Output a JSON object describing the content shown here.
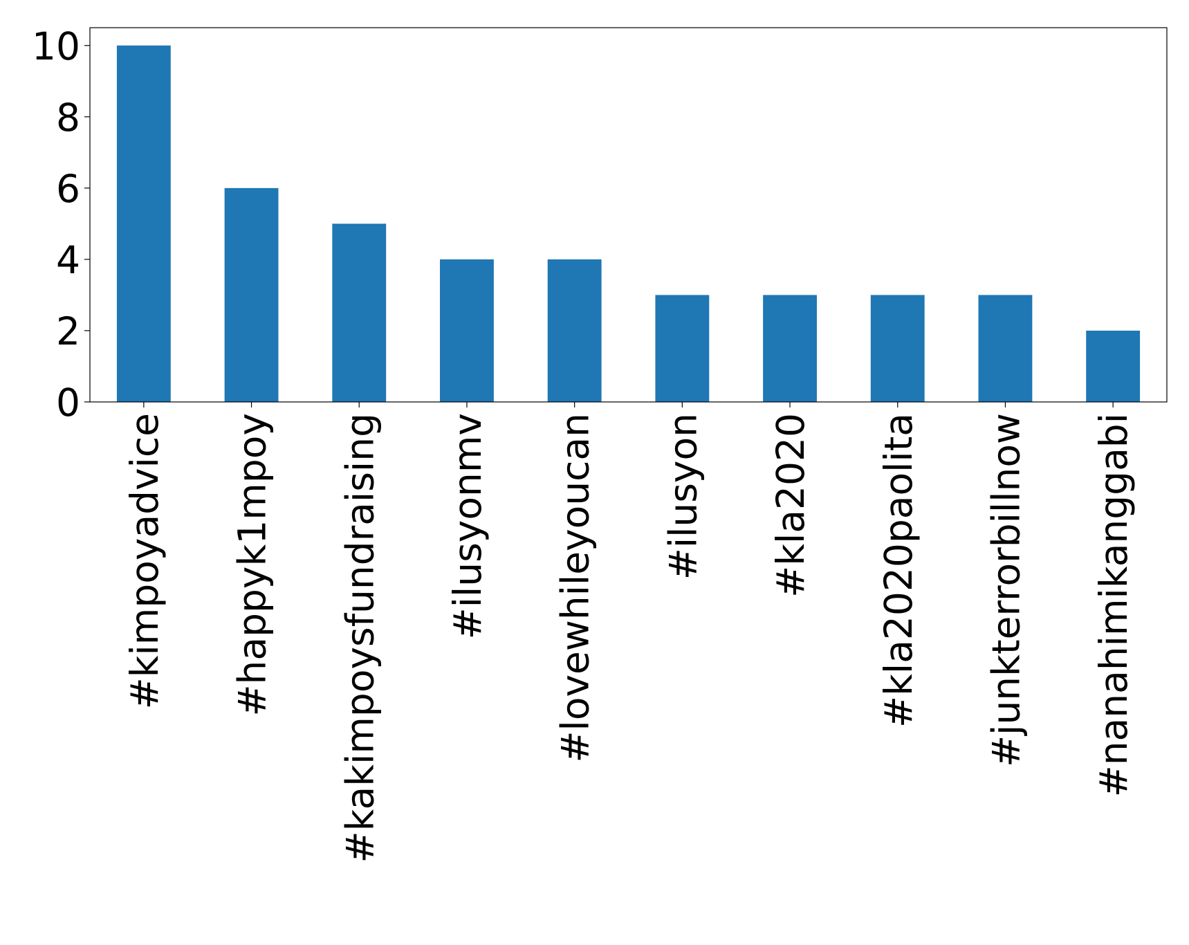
{
  "chart_data": {
    "type": "bar",
    "categories": [
      "#kimpoyadvice",
      "#happyk1mpoy",
      "#kakimpoysfundraising",
      "#ilusyonmv",
      "#lovewhileyoucan",
      "#ilusyon",
      "#kla2020",
      "#kla2020paolita",
      "#junkterrorbillnow",
      "#nanahimikanggabi"
    ],
    "values": [
      10,
      6,
      5,
      4,
      4,
      3,
      3,
      3,
      3,
      2
    ],
    "color": "#1f77b4",
    "ylim": [
      0,
      10.5
    ],
    "yticks": [
      0,
      2,
      4,
      6,
      8,
      10
    ],
    "grid": false
  }
}
